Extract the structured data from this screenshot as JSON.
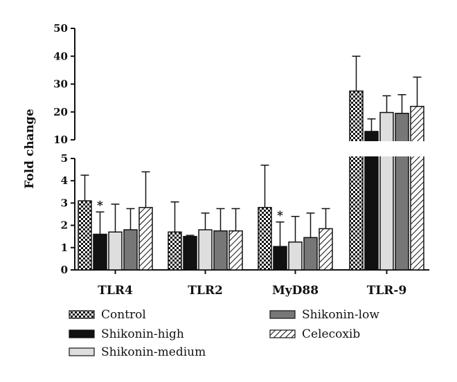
{
  "chart_data": {
    "type": "bar",
    "ylabel": "Fold change",
    "xlabel": "",
    "title": "",
    "broken_axis": true,
    "y_lower_range": [
      0,
      5
    ],
    "y_upper_range": [
      10,
      50
    ],
    "y_lower_ticks": [
      "0",
      "1",
      "2",
      "3",
      "4",
      "5"
    ],
    "y_upper_ticks": [
      "10",
      "20",
      "30",
      "40",
      "50"
    ],
    "categories": [
      "TLR4",
      "TLR2",
      "MyD88",
      "TLR-9"
    ],
    "series": [
      {
        "name": "Control",
        "pattern": "checker",
        "values": [
          3.1,
          1.7,
          2.8,
          27.5
        ],
        "errors": [
          1.15,
          1.35,
          1.9,
          12.5
        ]
      },
      {
        "name": "Shikonin-high",
        "pattern": "solid-black",
        "values": [
          1.6,
          1.5,
          1.05,
          13.0
        ],
        "errors": [
          1.0,
          0.05,
          1.1,
          4.5
        ]
      },
      {
        "name": "Shikonin-medium",
        "pattern": "light-gray",
        "values": [
          1.7,
          1.8,
          1.25,
          19.8
        ],
        "errors": [
          1.25,
          0.75,
          1.15,
          6.0
        ]
      },
      {
        "name": "Shikonin-low",
        "pattern": "dark-gray",
        "values": [
          1.8,
          1.75,
          1.45,
          19.5
        ],
        "errors": [
          0.95,
          1.0,
          1.1,
          6.7
        ]
      },
      {
        "name": "Celecoxib",
        "pattern": "hatch",
        "values": [
          2.8,
          1.75,
          1.85,
          22.0
        ],
        "errors": [
          1.6,
          1.0,
          0.9,
          10.5
        ]
      }
    ],
    "annotations": [
      {
        "text": "*",
        "category": "TLR4",
        "series": "Shikonin-high"
      },
      {
        "text": "*",
        "category": "MyD88",
        "series": "Shikonin-high"
      }
    ],
    "legend_position": "bottom",
    "colors": {
      "dark_gray": "#777777",
      "light_gray": "#dedede",
      "black": "#111111"
    }
  }
}
